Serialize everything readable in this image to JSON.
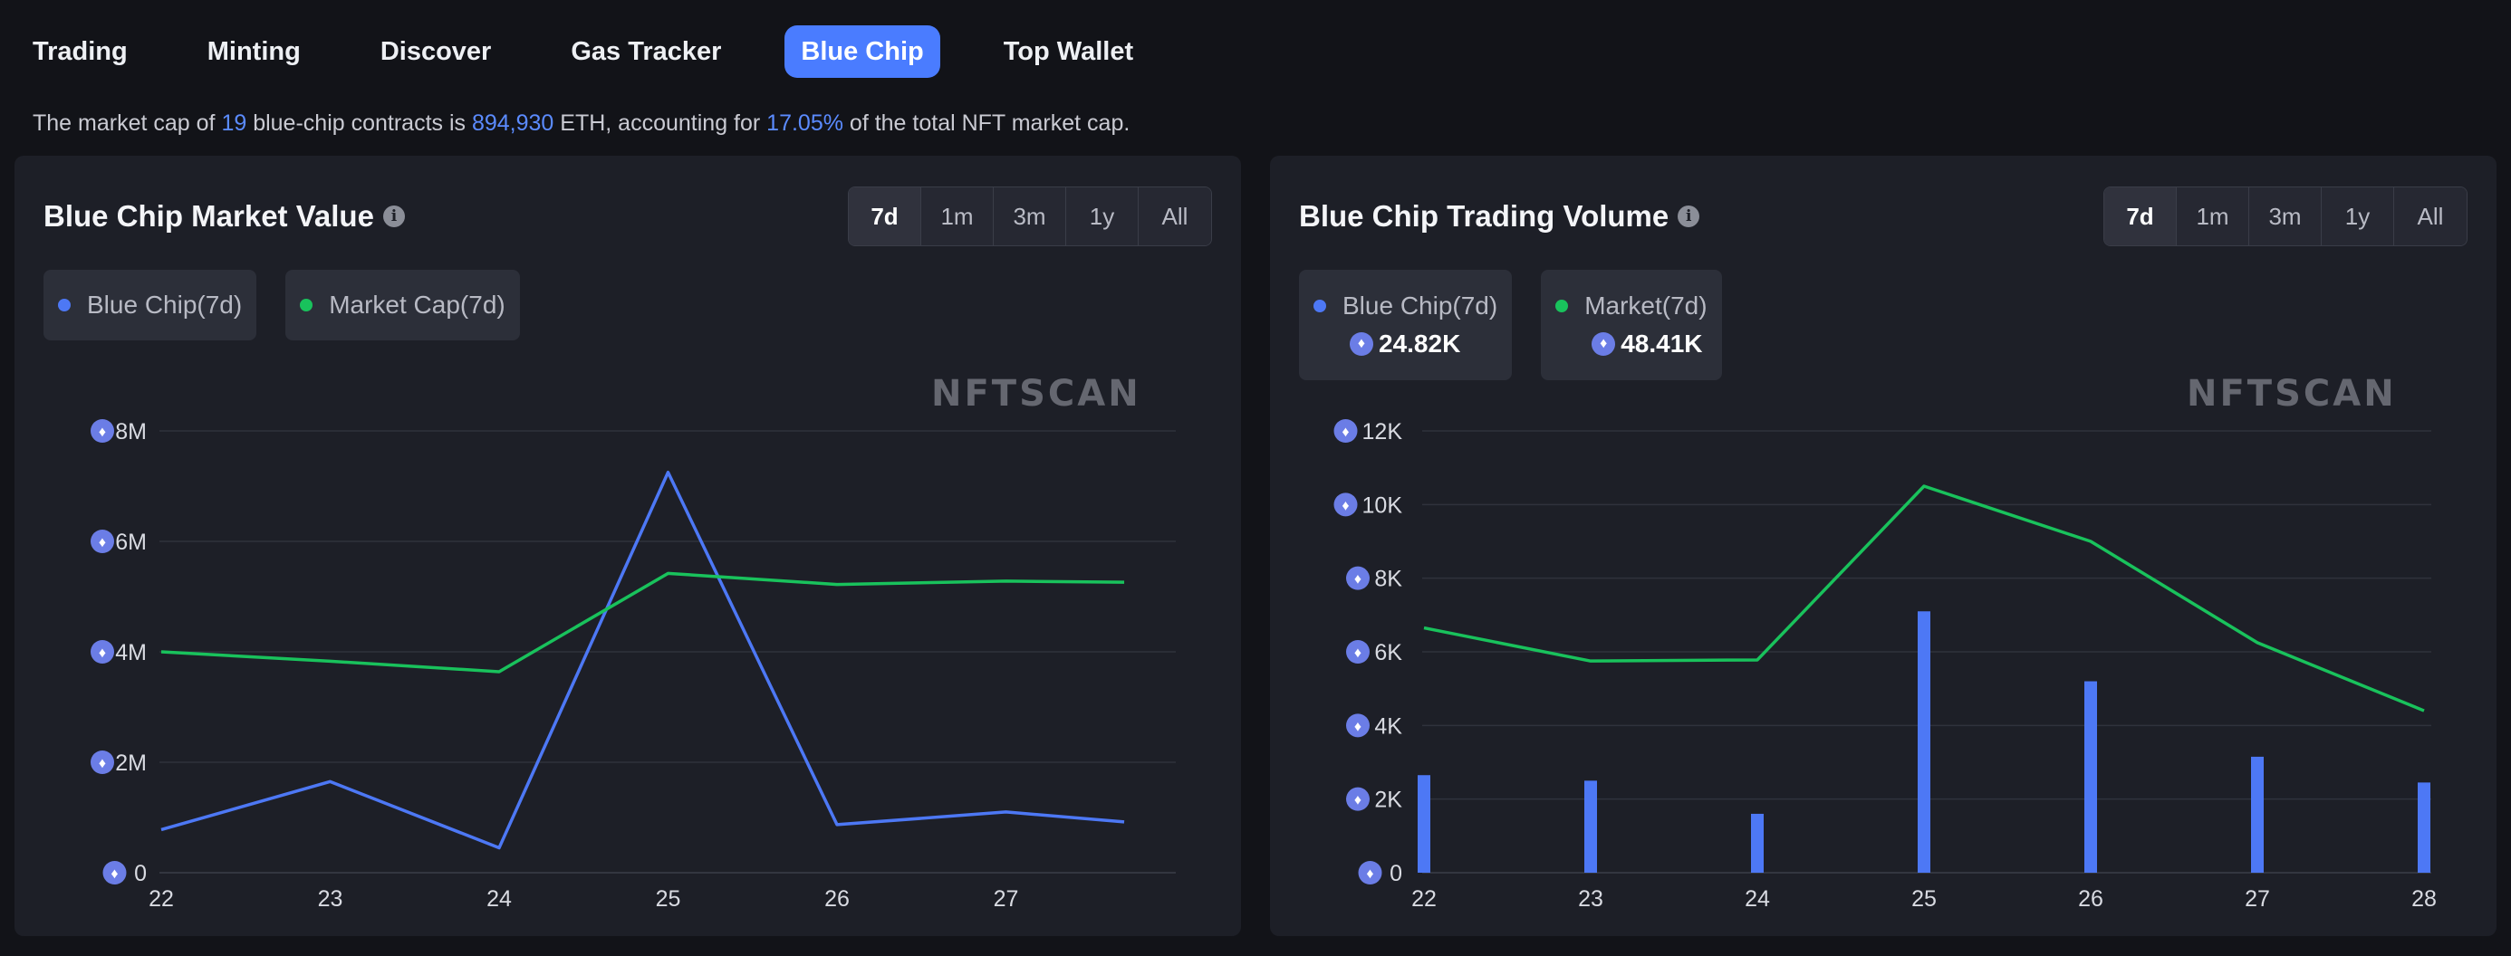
{
  "tabs": [
    {
      "label": "Trading",
      "active": false
    },
    {
      "label": "Minting",
      "active": false
    },
    {
      "label": "Discover",
      "active": false
    },
    {
      "label": "Gas Tracker",
      "active": false
    },
    {
      "label": "Blue Chip",
      "active": true
    },
    {
      "label": "Top Wallet",
      "active": false
    }
  ],
  "summary": {
    "p1": "The market cap of ",
    "count": "19",
    "p2": " blue-chip contracts is ",
    "value": "894,930",
    "p3": " ETH, accounting for ",
    "percent": "17.05%",
    "p4": " of the total NFT market cap."
  },
  "colors": {
    "accent": "#4a7cff",
    "blue_series": "#4d78f5",
    "green_series": "#19c25c"
  },
  "watermark": "NFTSCAN",
  "market_value": {
    "title": "Blue Chip Market Value",
    "ranges": [
      "7d",
      "1m",
      "3m",
      "1y",
      "All"
    ],
    "active_range": "7d",
    "legend": [
      {
        "label": "Blue Chip(7d)",
        "color": "#4d78f5"
      },
      {
        "label": "Market Cap(7d)",
        "color": "#19c25c"
      }
    ]
  },
  "trading_volume": {
    "title": "Blue Chip Trading Volume",
    "ranges": [
      "7d",
      "1m",
      "3m",
      "1y",
      "All"
    ],
    "active_range": "7d",
    "legend": [
      {
        "label": "Blue Chip(7d)",
        "color": "#4d78f5",
        "value": "24.82K"
      },
      {
        "label": "Market(7d)",
        "color": "#19c25c",
        "value": "48.41K"
      }
    ]
  },
  "chart_data": [
    {
      "type": "line",
      "title": "Blue Chip Market Value",
      "x": [
        22,
        23,
        24,
        25,
        26,
        27,
        27.7
      ],
      "x_ticks": [
        "22",
        "23",
        "24",
        "25",
        "26",
        "27"
      ],
      "y_ticks": [
        "0",
        "2M",
        "4M",
        "6M",
        "8M"
      ],
      "ylim": [
        0,
        8000000
      ],
      "grid": true,
      "series": [
        {
          "name": "Blue Chip(7d)",
          "color": "#4d78f5",
          "values": [
            780000,
            1650000,
            450000,
            7250000,
            870000,
            1100000,
            920000
          ]
        },
        {
          "name": "Market Cap(7d)",
          "color": "#19c25c",
          "values": [
            4000000,
            3830000,
            3640000,
            5420000,
            5220000,
            5280000,
            5260000
          ]
        }
      ]
    },
    {
      "type": "bar",
      "title": "Blue Chip Trading Volume",
      "x": [
        22,
        23,
        24,
        25,
        26,
        27,
        28
      ],
      "x_ticks": [
        "22",
        "23",
        "24",
        "25",
        "26",
        "27",
        "28"
      ],
      "y_ticks": [
        "0",
        "2K",
        "4K",
        "6K",
        "8K",
        "10K",
        "12K"
      ],
      "ylim": [
        0,
        12000
      ],
      "grid": true,
      "series": [
        {
          "name": "Blue Chip(7d)",
          "type": "bar",
          "color": "#4d78f5",
          "values": [
            2650,
            2500,
            1600,
            7100,
            5200,
            3150,
            2450
          ]
        },
        {
          "name": "Market(7d)",
          "type": "line",
          "color": "#19c25c",
          "values": [
            6650,
            5750,
            5780,
            10500,
            9000,
            6250,
            4400
          ]
        }
      ]
    }
  ]
}
